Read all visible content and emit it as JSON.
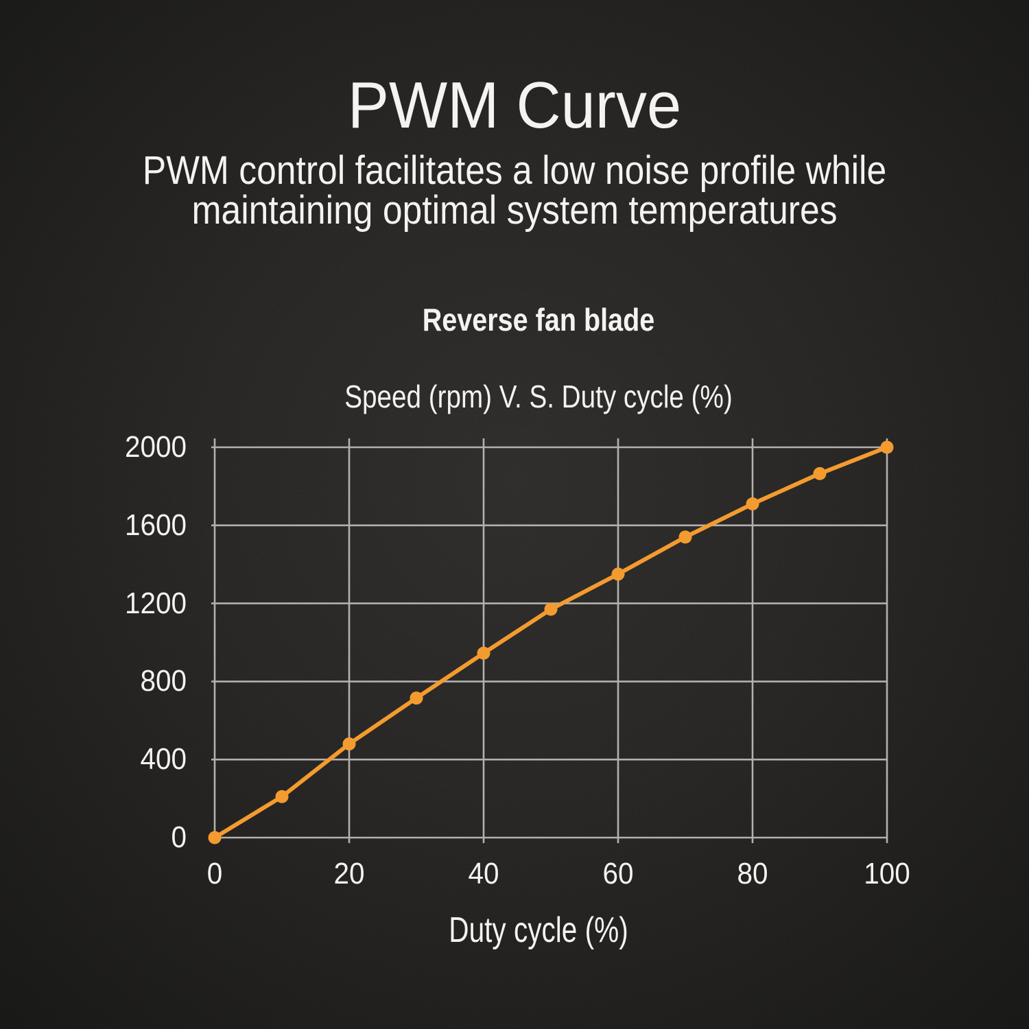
{
  "page": {
    "title": "PWM Curve",
    "subtitle": "PWM control facilitates a low noise profile while\nmaintaining optimal system temperatures"
  },
  "chart_data": {
    "type": "line",
    "title": "Reverse fan blade",
    "subtitle": "Speed (rpm) V. S. Duty cycle (%)",
    "xlabel": "Duty cycle (%)",
    "x": [
      0,
      10,
      20,
      30,
      40,
      50,
      60,
      70,
      80,
      90,
      100
    ],
    "series": [
      {
        "name": "Reverse fan blade",
        "values": [
          0,
          210,
          480,
          715,
          945,
          1170,
          1350,
          1540,
          1710,
          1865,
          2000
        ]
      }
    ],
    "xlim": [
      0,
      100
    ],
    "ylim": [
      0,
      2000
    ],
    "xticks": [
      0,
      20,
      40,
      60,
      80,
      100
    ],
    "yticks": [
      0,
      400,
      800,
      1200,
      1600,
      2000
    ],
    "grid": true,
    "legend_position": "none",
    "line_color": "#F49B2F",
    "marker": "circle"
  },
  "colors": {
    "background": "#201F1E",
    "text": "#F5F3F0",
    "grid": "#B3B1AE",
    "accent": "#F49B2F"
  }
}
